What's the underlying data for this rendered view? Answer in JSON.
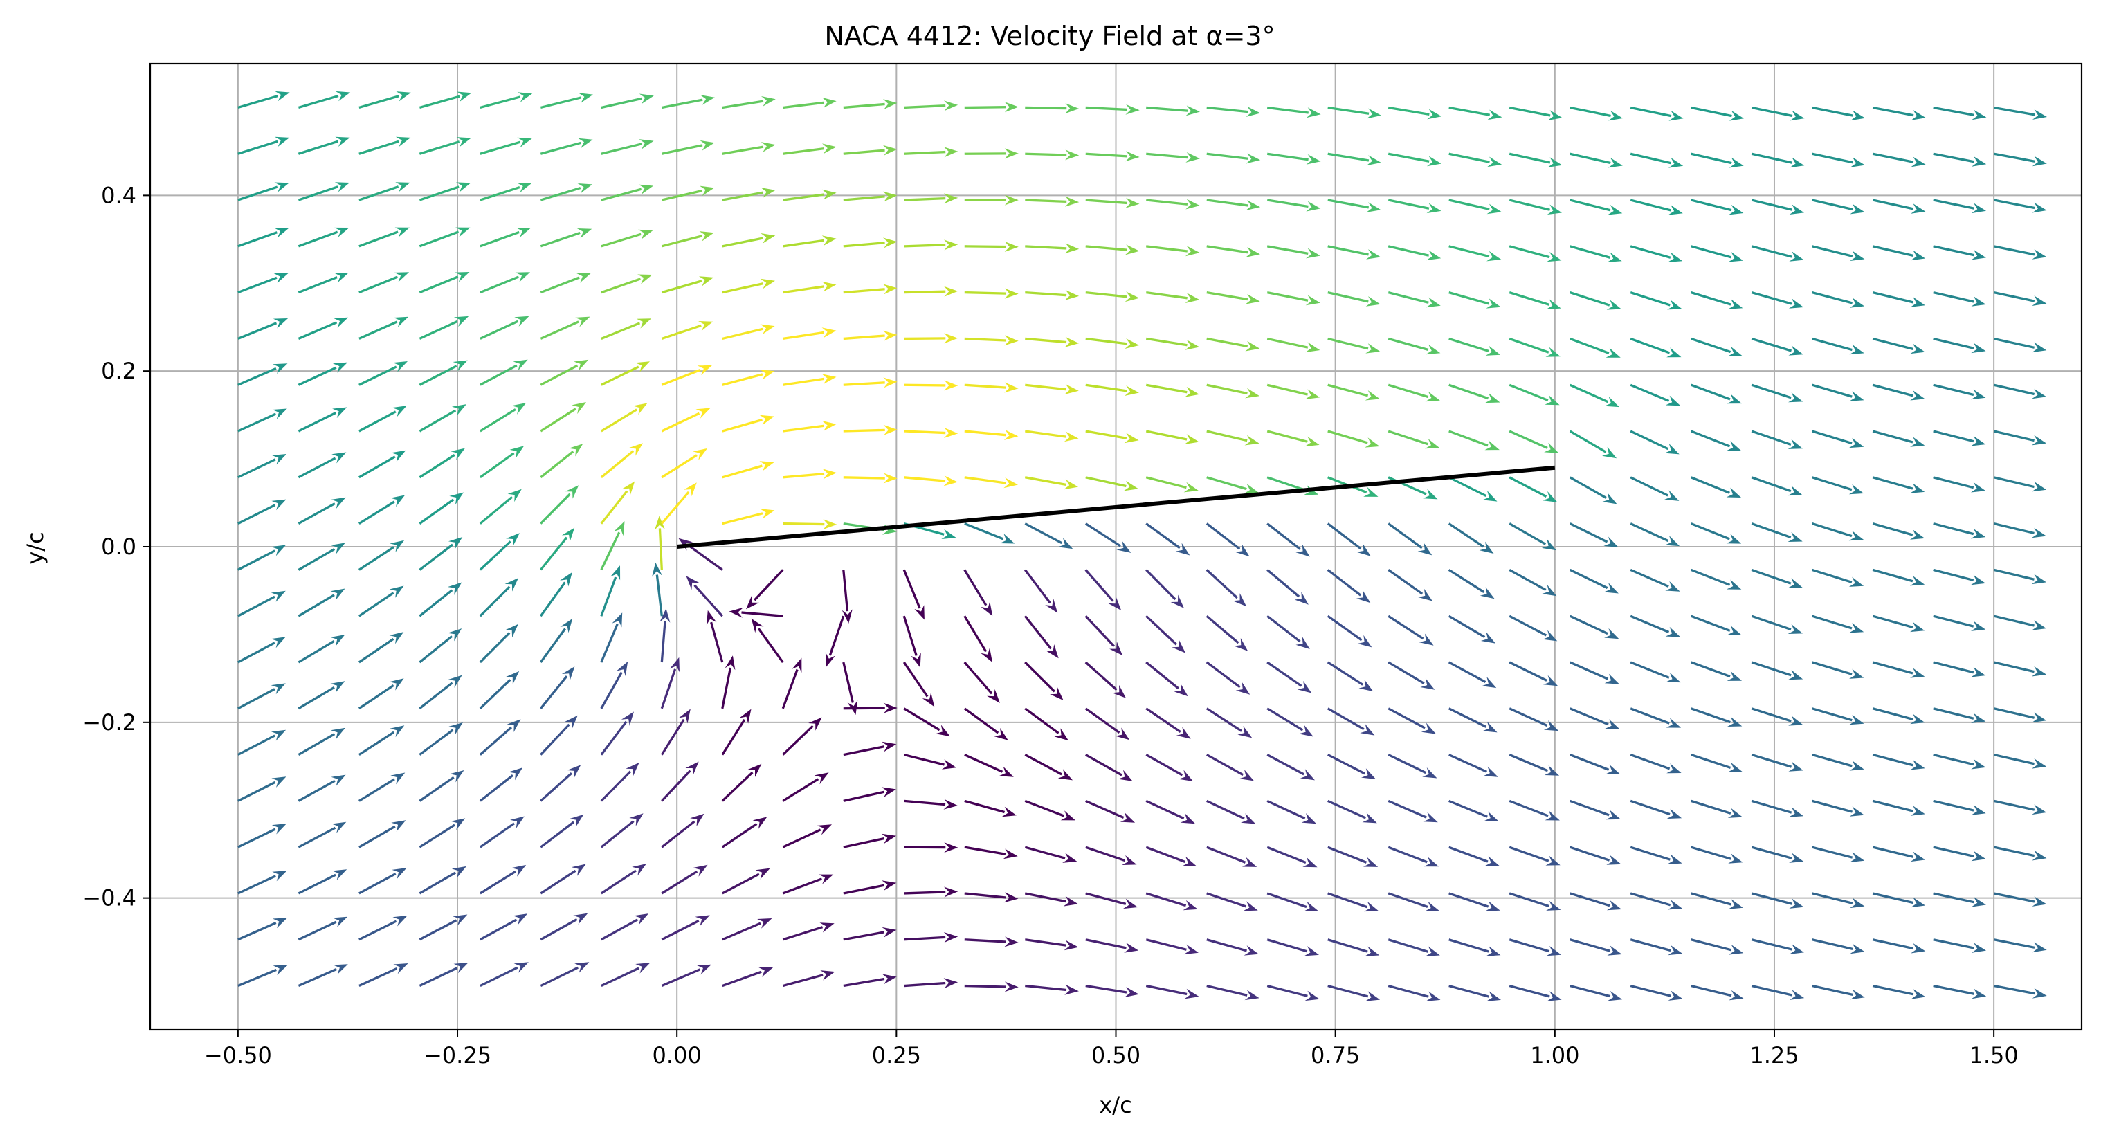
{
  "chart_data": {
    "type": "quiver",
    "title": "NACA 4412: Velocity Field at α=3°",
    "xlabel": "x/c",
    "ylabel": "y/c",
    "xlim": [
      -0.6,
      1.6
    ],
    "ylim": [
      -0.55,
      0.55
    ],
    "xticks": [
      -0.5,
      -0.25,
      0.0,
      0.25,
      0.5,
      0.75,
      1.0,
      1.25,
      1.5
    ],
    "xtick_labels": [
      "−0.50",
      "−0.25",
      "0.00",
      "0.25",
      "0.50",
      "0.75",
      "1.00",
      "1.25",
      "1.50"
    ],
    "yticks": [
      -0.4,
      -0.2,
      0.0,
      0.2,
      0.4
    ],
    "ytick_labels": [
      "−0.4",
      "−0.2",
      "0.0",
      "0.2",
      "0.4"
    ],
    "grid": true,
    "colormap": "viridis",
    "color_by": "velocity magnitude",
    "grid_x": {
      "start": -0.5,
      "stop": 1.5,
      "count": 30
    },
    "grid_y": {
      "start": -0.5,
      "stop": 0.5,
      "count": 20
    },
    "freestream": {
      "U": 1.0,
      "alpha_deg": 3
    },
    "airfoil": {
      "name": "NACA 4412",
      "chord_line": {
        "x": [
          0.0,
          1.0
        ],
        "y": [
          0.0,
          0.09
        ]
      },
      "color": "#000000"
    }
  }
}
